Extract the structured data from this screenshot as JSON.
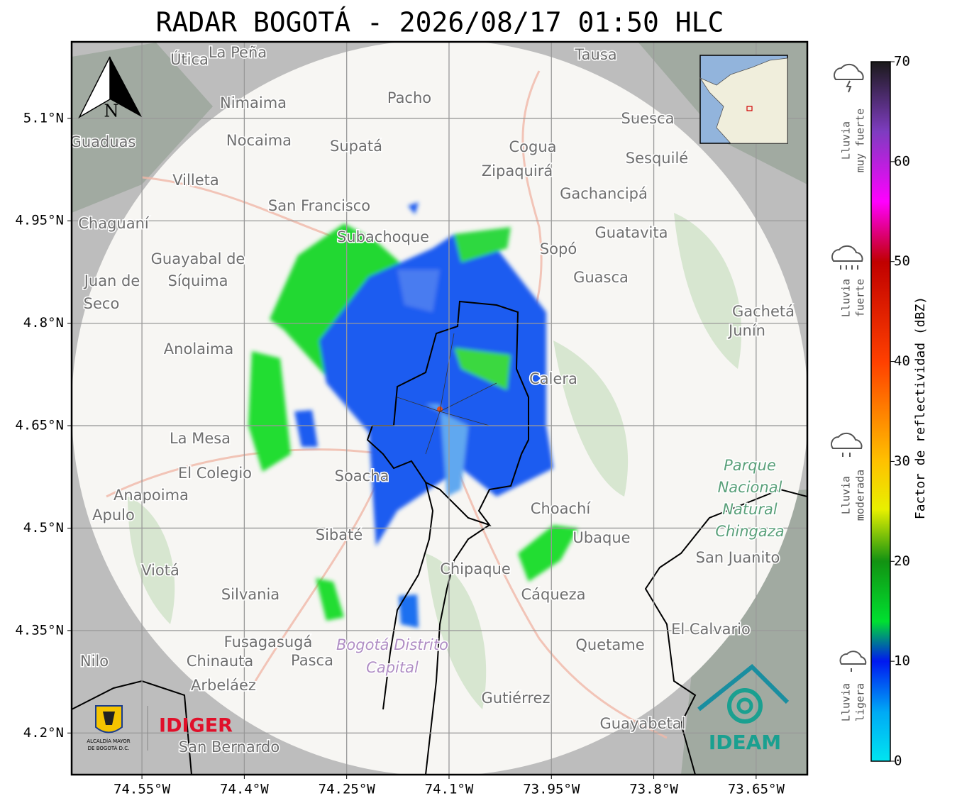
{
  "title": "RADAR BOGOTÁ - 2026/08/17 01:50 HLC",
  "map": {
    "xlim": [
      -74.653,
      -73.575
    ],
    "ylim": [
      4.139,
      5.212
    ],
    "grid": true,
    "xticks": [
      {
        "value": -74.55,
        "label": "74.55°W"
      },
      {
        "value": -74.4,
        "label": "74.4°W"
      },
      {
        "value": -74.25,
        "label": "74.25°W"
      },
      {
        "value": -74.1,
        "label": "74.1°W"
      },
      {
        "value": -73.95,
        "label": "73.95°W"
      },
      {
        "value": -73.8,
        "label": "73.8°W"
      },
      {
        "value": -73.65,
        "label": "73.65°W"
      }
    ],
    "yticks": [
      {
        "value": 4.2,
        "label": "4.2°N"
      },
      {
        "value": 4.35,
        "label": "4.35°N"
      },
      {
        "value": 4.5,
        "label": "4.5°N"
      },
      {
        "value": 4.65,
        "label": "4.65°N"
      },
      {
        "value": 4.8,
        "label": "4.8°N"
      },
      {
        "value": 4.95,
        "label": "4.95°N"
      },
      {
        "value": 5.1,
        "label": "5.1°N"
      }
    ],
    "north": "N",
    "places": [
      "Útica",
      "La Peña",
      "Tausa",
      "Pacho",
      "Nimaima",
      "Guaduas",
      "Nocaima",
      "Supatá",
      "Cogua",
      "Suesca",
      "Sesquilé",
      "Zipaquirá",
      "Villeta",
      "Gachancipá",
      "San Francisco",
      "Chaguaní",
      "Guatavita",
      "Subachoque",
      "Sopó",
      "Guayabal de",
      "Síquima",
      "Guasca",
      "Juan de",
      "Seco",
      "Gachetá",
      "Junín",
      "Anolaima",
      "Calera",
      "La Mesa",
      "El Colegio",
      "Soacha",
      "Anapoima",
      "Apulo",
      "Choachí",
      "Sibaté",
      "Ubaque",
      "San Juanito",
      "Viotá",
      "Chipaque",
      "Silvania",
      "Cáqueza",
      "El Calvario",
      "Fusagasugá",
      "Quetame",
      "Nilo",
      "Chinauta",
      "Pasca",
      "Arbeláez",
      "Gutiérrez",
      "Guayabetal",
      "San Bernardo"
    ],
    "park": [
      "Parque",
      "Nacional",
      "Natural",
      "Chingaza"
    ],
    "capital": [
      "Bogotá Distrito",
      "Capital"
    ]
  },
  "colorbar": {
    "label": "Factor de reflectividad (dBZ)",
    "lim": [
      0,
      70
    ],
    "ticks": [
      0,
      10,
      20,
      30,
      40,
      50,
      60,
      70
    ]
  },
  "categories": [
    [
      "Lluvia",
      "muy fuerte"
    ],
    [
      "Lluvia",
      "fuerte"
    ],
    [
      "Lluvia",
      "moderada"
    ],
    [
      "Lluvia",
      "ligera"
    ]
  ],
  "logos": {
    "alcaldia": [
      "ALCALDÍA MAYOR",
      "DE BOGOTÁ D.C."
    ],
    "idiger": "IDIGER",
    "ideam": "IDEAM"
  }
}
